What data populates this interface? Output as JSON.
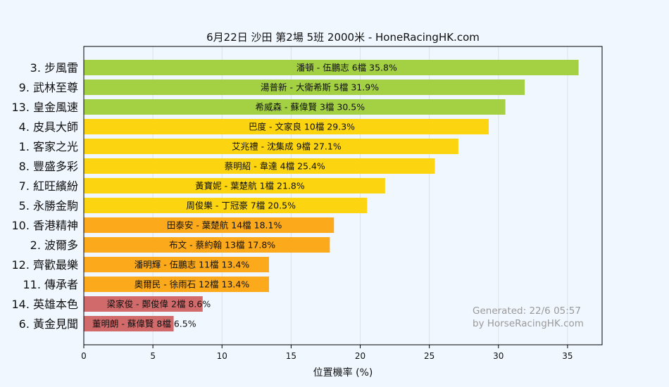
{
  "chart_data": {
    "type": "bar",
    "orientation": "horizontal",
    "title": "6月22日  沙田  第2場  5班  2000米 - HoneRacingHK.com",
    "xlabel": "位置機率 (%)",
    "ylabel": "",
    "xlim": [
      0,
      37.5
    ],
    "xticks": [
      0,
      5,
      10,
      15,
      20,
      25,
      30,
      35
    ],
    "grid": "vertical",
    "legend": "none",
    "colors": {
      "green": "#a3d143",
      "yellow": "#fcd510",
      "orange": "#fcaa1c",
      "red": "#d16b6b",
      "background": "#f0f7ff",
      "grid": "#d9e2ec"
    },
    "bars": [
      {
        "category": "3. 步風雷",
        "label": "潘頓 - 伍鵬志 6檔  35.8%",
        "value": 35.8,
        "color": "green"
      },
      {
        "category": "9. 武林至尊",
        "label": "湯普新 - 大衛希斯 5檔  31.9%",
        "value": 31.9,
        "color": "green"
      },
      {
        "category": "13. 皇金風速",
        "label": "希威森 - 蘇偉賢 3檔  30.5%",
        "value": 30.5,
        "color": "green"
      },
      {
        "category": "4. 皮具大師",
        "label": "巴度 - 文家良 10檔  29.3%",
        "value": 29.3,
        "color": "yellow"
      },
      {
        "category": "1. 客家之光",
        "label": "艾兆禮 - 沈集成 9檔  27.1%",
        "value": 27.1,
        "color": "yellow"
      },
      {
        "category": "8. 豐盛多彩",
        "label": "蔡明紹 - 韋達 4檔  25.4%",
        "value": 25.4,
        "color": "yellow"
      },
      {
        "category": "7. 紅旺繽紛",
        "label": "黃寶妮 - 葉楚航 1檔  21.8%",
        "value": 21.8,
        "color": "yellow"
      },
      {
        "category": "5. 永勝金駒",
        "label": "周俊樂 - 丁冠豪 7檔  20.5%",
        "value": 20.5,
        "color": "yellow"
      },
      {
        "category": "10. 香港精神",
        "label": "田泰安 - 葉楚航 14檔  18.1%",
        "value": 18.1,
        "color": "orange"
      },
      {
        "category": "2. 波爾多",
        "label": "布文 - 蔡約翰 13檔  17.8%",
        "value": 17.8,
        "color": "orange"
      },
      {
        "category": "12. 齊歡最樂",
        "label": "潘明輝 - 伍鵬志 11檔  13.4%",
        "value": 13.4,
        "color": "orange"
      },
      {
        "category": "11. 傳承者",
        "label": "奧爾民 - 徐雨石 12檔  13.4%",
        "value": 13.4,
        "color": "orange"
      },
      {
        "category": "14. 英雄本色",
        "label": "梁家俊 - 鄭俊偉 2檔  8.6%",
        "value": 8.6,
        "color": "red"
      },
      {
        "category": "6. 黃金見聞",
        "label": "董明朗 - 蘇偉賢 8檔  6.5%",
        "value": 6.5,
        "color": "red"
      }
    ],
    "annotation": [
      "Generated: 22/6 05:57",
      "by HorseRacingHK.com"
    ]
  }
}
